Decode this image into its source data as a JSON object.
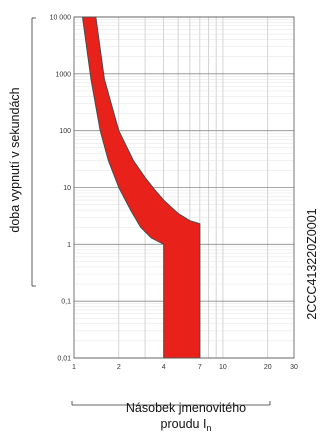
{
  "chart_data": {
    "type": "area",
    "xscale": "log",
    "yscale": "log",
    "xlim": [
      1,
      30
    ],
    "ylim": [
      0.01,
      10000
    ],
    "x_ticks": [
      1,
      2,
      4,
      7,
      10,
      20,
      30
    ],
    "x_tick_labels": [
      "1",
      "2",
      "4",
      "7",
      "10",
      "20",
      "30"
    ],
    "y_ticks": [
      0.01,
      0.1,
      1,
      10,
      100,
      1000,
      10000
    ],
    "y_tick_labels": [
      "0,01",
      "0,1",
      "1",
      "10",
      "100",
      "1000",
      "10 000"
    ],
    "grid": true,
    "series_color": "#e8221b",
    "band": {
      "upper_boundary": [
        [
          1.4,
          10000
        ],
        [
          1.6,
          800
        ],
        [
          2,
          100
        ],
        [
          2.5,
          30
        ],
        [
          3,
          15
        ],
        [
          3.5,
          9
        ],
        [
          4,
          6
        ],
        [
          4.5,
          4.5
        ],
        [
          5,
          3.5
        ],
        [
          6,
          2.6
        ],
        [
          7,
          2.3
        ],
        [
          7,
          0.01
        ]
      ],
      "lower_boundary": [
        [
          1.14,
          10000
        ],
        [
          1.3,
          800
        ],
        [
          1.5,
          100
        ],
        [
          1.7,
          30
        ],
        [
          2,
          10
        ],
        [
          2.4,
          4
        ],
        [
          2.8,
          2
        ],
        [
          3.3,
          1.3
        ],
        [
          4,
          1
        ],
        [
          4,
          0.01
        ]
      ]
    },
    "xlabel_line1": "Násobek jmenovitého",
    "xlabel_line2": "proudu I",
    "xlabel_subscript": "n",
    "ylabel": "doba vypnutí v sekundách",
    "side_code": "2CCC413220Z0001"
  }
}
